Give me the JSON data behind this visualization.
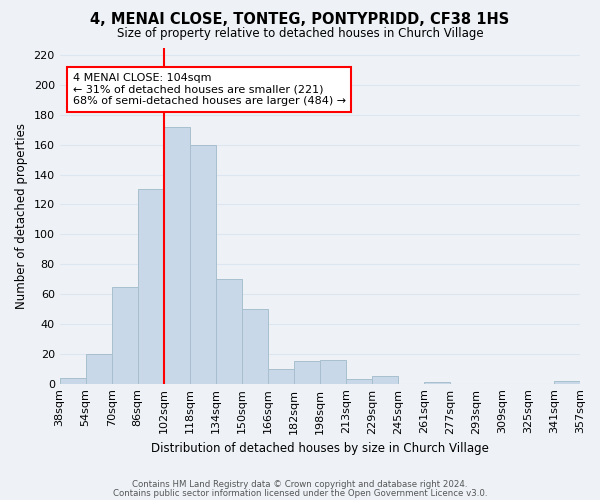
{
  "title": "4, MENAI CLOSE, TONTEG, PONTYPRIDD, CF38 1HS",
  "subtitle": "Size of property relative to detached houses in Church Village",
  "xlabel": "Distribution of detached houses by size in Church Village",
  "ylabel": "Number of detached properties",
  "bar_color": "#c8d8e8",
  "bar_edge_color": "#a8bfcf",
  "grid_color": "#dce6f0",
  "vline_color": "red",
  "annotation_text": "4 MENAI CLOSE: 104sqm\n← 31% of detached houses are smaller (221)\n68% of semi-detached houses are larger (484) →",
  "annotation_box_color": "white",
  "annotation_box_edge": "red",
  "footer1": "Contains HM Land Registry data © Crown copyright and database right 2024.",
  "footer2": "Contains public sector information licensed under the Open Government Licence v3.0.",
  "tick_labels": [
    "38sqm",
    "54sqm",
    "70sqm",
    "86sqm",
    "102sqm",
    "118sqm",
    "134sqm",
    "150sqm",
    "166sqm",
    "182sqm",
    "198sqm",
    "213sqm",
    "229sqm",
    "245sqm",
    "261sqm",
    "277sqm",
    "293sqm",
    "309sqm",
    "325sqm",
    "341sqm",
    "357sqm"
  ],
  "values": [
    4,
    20,
    65,
    130,
    172,
    160,
    70,
    50,
    10,
    15,
    16,
    3,
    5,
    0,
    1,
    0,
    0,
    0,
    0,
    2
  ],
  "vline_index": 4,
  "ylim": [
    0,
    225
  ],
  "yticks": [
    0,
    20,
    40,
    60,
    80,
    100,
    120,
    140,
    160,
    180,
    200,
    220
  ],
  "background_color": "#eef2f7"
}
